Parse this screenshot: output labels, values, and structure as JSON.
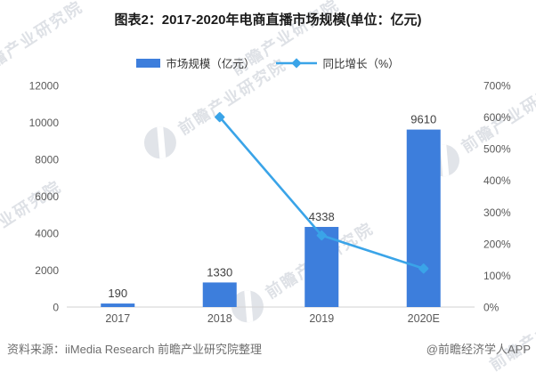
{
  "title": "图表2：2017-2020年电商直播市场规模(单位：亿元)",
  "legend": {
    "bar_label": "市场规模（亿元）",
    "line_label": "同比增长（%）"
  },
  "chart_data": {
    "type": "bar",
    "categories": [
      "2017",
      "2018",
      "2019",
      "2020E"
    ],
    "series": [
      {
        "name": "市场规模（亿元）",
        "type": "bar",
        "axis": "left",
        "color": "#3D7EDC",
        "values": [
          190,
          1330,
          4338,
          9610
        ],
        "data_labels": [
          "190",
          "1330",
          "4338",
          "9610"
        ]
      },
      {
        "name": "同比增长（%）",
        "type": "line",
        "axis": "right",
        "color": "#3AA4E8",
        "values": [
          null,
          600,
          226.2,
          121.5
        ]
      }
    ],
    "left_axis": {
      "min": 0,
      "max": 12000,
      "step": 2000,
      "ticks": [
        "0",
        "2000",
        "4000",
        "6000",
        "8000",
        "10000",
        "12000"
      ]
    },
    "right_axis": {
      "min": 0,
      "max": 700,
      "step": 100,
      "ticks": [
        "0%",
        "100%",
        "200%",
        "300%",
        "400%",
        "500%",
        "600%",
        "700%"
      ]
    },
    "grid": false,
    "legend_position": "top",
    "axis_line_color": "#d2d2d2"
  },
  "footer": {
    "source": "资料来源：iiMedia Research 前瞻产业研究院整理",
    "credit": "@前瞻经济学人APP"
  },
  "watermark": {
    "text": "前瞻产业研究院"
  }
}
